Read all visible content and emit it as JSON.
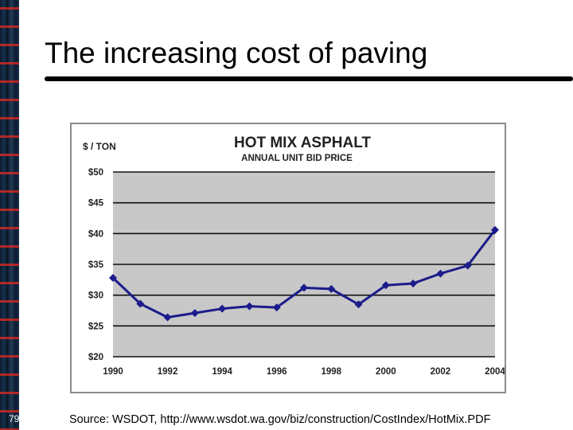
{
  "slide": {
    "title": "The increasing cost of paving",
    "source": "Source: WSDOT, http://www.wsdot.wa.gov/biz/construction/CostIndex/HotMix.PDF",
    "number": "79"
  },
  "colors": {
    "line": "#1c1c8c",
    "plot_bg": "#c8c8c8",
    "grid": "#111111"
  },
  "chart_data": {
    "type": "line",
    "title": "HOT MIX ASPHALT",
    "subtitle": "ANNUAL UNIT BID PRICE",
    "ylabel": "$ / TON",
    "xlabel": "",
    "ylim": [
      20,
      50
    ],
    "xlim": [
      1990,
      2004
    ],
    "yticks": [
      20,
      25,
      30,
      35,
      40,
      45,
      50
    ],
    "ytick_labels": [
      "$20",
      "$25",
      "$30",
      "$35",
      "$40",
      "$45",
      "$50"
    ],
    "xticks": [
      1990,
      1992,
      1994,
      1996,
      1998,
      2000,
      2002,
      2004
    ],
    "xtick_labels": [
      "1990",
      "1992",
      "1994",
      "1996",
      "1998",
      "2000",
      "2002",
      "2004"
    ],
    "grid": "horizontal",
    "series": [
      {
        "name": "Hot Mix Asphalt",
        "x": [
          1990,
          1991,
          1992,
          1993,
          1994,
          1995,
          1996,
          1997,
          1998,
          1999,
          2000,
          2001,
          2002,
          2003,
          2004
        ],
        "values": [
          32.8,
          28.6,
          26.4,
          27.1,
          27.8,
          28.2,
          28.0,
          31.2,
          31.0,
          28.5,
          31.6,
          31.9,
          33.5,
          34.8,
          40.6
        ]
      }
    ]
  }
}
